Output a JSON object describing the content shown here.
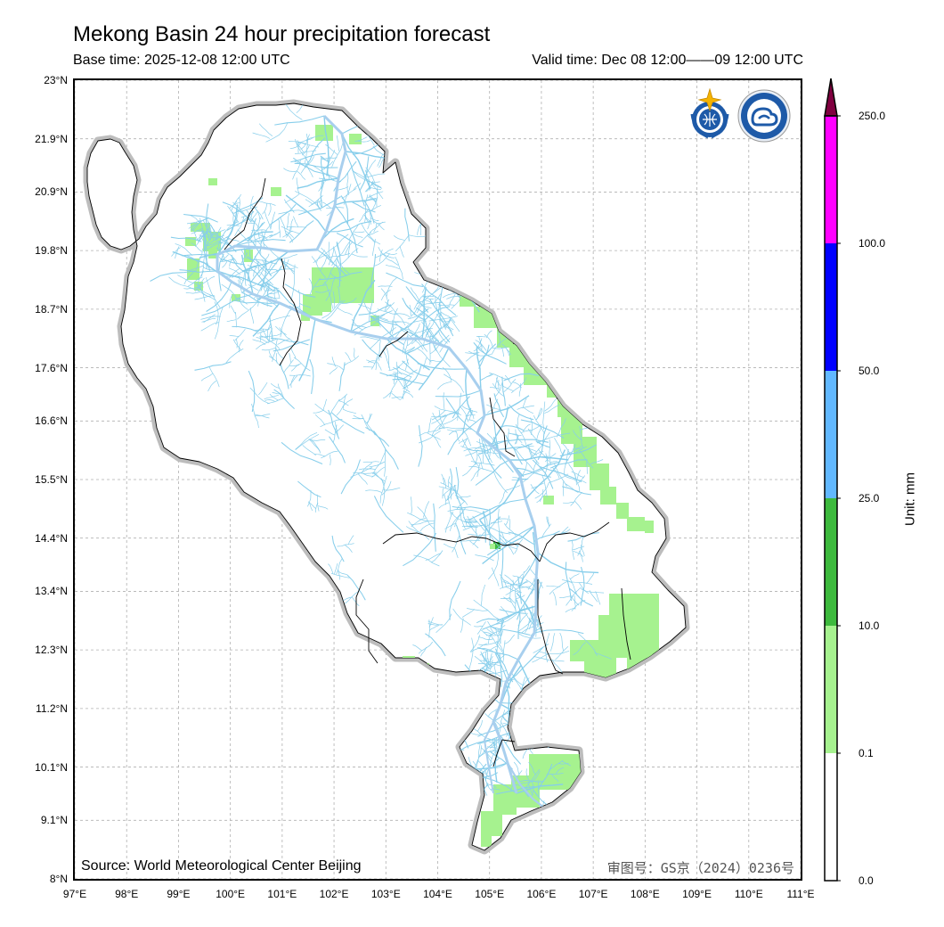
{
  "header": {
    "title": "Mekong Basin 24 hour precipitation forecast",
    "base_time": "Base time: 2025-12-08 12:00 UTC",
    "valid_time": "Valid time: Dec 08 12:00——09 12:00 UTC"
  },
  "map": {
    "lat_ticks": [
      "23°N",
      "21.9°N",
      "20.9°N",
      "19.8°N",
      "18.7°N",
      "17.6°N",
      "16.6°N",
      "15.5°N",
      "14.4°N",
      "13.4°N",
      "12.3°N",
      "11.2°N",
      "10.1°N",
      "9.1°N",
      "8°N"
    ],
    "lon_ticks": [
      "97°E",
      "98°E",
      "99°E",
      "100°E",
      "101°E",
      "102°E",
      "103°E",
      "104°E",
      "105°E",
      "106°E",
      "107°E",
      "108°E",
      "109°E",
      "110°E",
      "111°E"
    ],
    "source": "Source: World Meteorological Center Beijing",
    "approval": "审图号：GS京（2024）0236号",
    "colors": {
      "river": "#87ceeb",
      "main_river": "#a8cfee",
      "basin_outline": "#bdbdbd",
      "border": "#000000"
    }
  },
  "legend": {
    "unit": "Unit: mm",
    "levels": [
      "0.0",
      "0.1",
      "10.0",
      "25.0",
      "50.0",
      "100.0",
      "250.0"
    ],
    "colors": [
      "#ffffff",
      "#a6f28f",
      "#3dba3d",
      "#61b8ff",
      "#0000ff",
      "#ff00ff",
      "#800040"
    ]
  },
  "logos": [
    "wmo-emblem-icon",
    "cma-emblem-icon"
  ]
}
